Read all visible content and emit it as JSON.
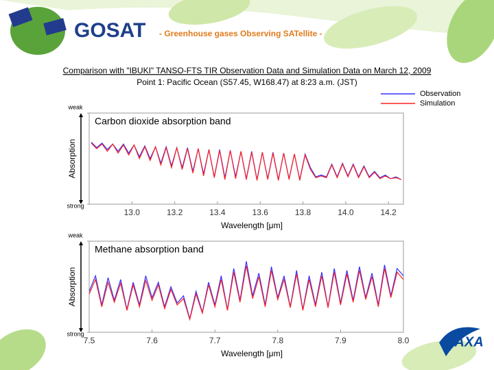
{
  "header": {
    "logo": "GOSAT",
    "tagline": "- Greenhouse gases Observing SATellite -"
  },
  "title": "Comparison with \"IBUKI\" TANSO-FTS TIR Observation Data and Simulation Data on March 12, 2009",
  "subtitle": "Point 1: Pacific Ocean (S57.45, W168.47) at 8:23 a.m. (JST)",
  "brand": "JAXA",
  "chart_data": [
    {
      "type": "line",
      "title": "Carbon dioxide absorption band",
      "x_label": "Wavelength [μm]",
      "y_label": "Absorption",
      "xlim": [
        12.8,
        14.27
      ],
      "xticks": [
        {
          "value": 13,
          "label": "13.0"
        },
        13.2,
        13.4,
        13.6,
        13.8,
        {
          "value": 14,
          "label": "14.0"
        },
        14.2
      ],
      "ylim": [
        0,
        1
      ],
      "yticks": [
        {
          "value": 1,
          "label": "weak"
        },
        {
          "value": 0,
          "label": "strong"
        }
      ],
      "x": [
        12.81,
        12.835,
        12.86,
        12.885,
        12.91,
        12.935,
        12.96,
        12.985,
        13.01,
        13.035,
        13.06,
        13.085,
        13.11,
        13.135,
        13.16,
        13.185,
        13.21,
        13.235,
        13.26,
        13.285,
        13.31,
        13.335,
        13.36,
        13.385,
        13.41,
        13.435,
        13.46,
        13.485,
        13.51,
        13.535,
        13.56,
        13.585,
        13.61,
        13.635,
        13.66,
        13.685,
        13.71,
        13.735,
        13.76,
        13.785,
        13.81,
        13.835,
        13.86,
        13.885,
        13.91,
        13.935,
        13.96,
        13.985,
        14.01,
        14.035,
        14.06,
        14.085,
        14.11,
        14.135,
        14.16,
        14.185,
        14.21,
        14.235,
        14.26
      ],
      "series": [
        {
          "name": "Observation",
          "color": "#3030ff",
          "values": [
            0.68,
            0.62,
            0.67,
            0.6,
            0.66,
            0.58,
            0.66,
            0.56,
            0.65,
            0.52,
            0.64,
            0.5,
            0.63,
            0.45,
            0.63,
            0.42,
            0.62,
            0.4,
            0.62,
            0.36,
            0.61,
            0.33,
            0.6,
            0.3,
            0.6,
            0.29,
            0.59,
            0.3,
            0.58,
            0.28,
            0.58,
            0.27,
            0.57,
            0.28,
            0.57,
            0.27,
            0.56,
            0.28,
            0.55,
            0.27,
            0.55,
            0.4,
            0.3,
            0.32,
            0.3,
            0.44,
            0.3,
            0.45,
            0.31,
            0.44,
            0.3,
            0.42,
            0.3,
            0.36,
            0.29,
            0.32,
            0.28,
            0.3,
            0.27
          ]
        },
        {
          "name": "Simulation",
          "color": "#ff2020",
          "values": [
            0.67,
            0.61,
            0.66,
            0.58,
            0.66,
            0.56,
            0.65,
            0.54,
            0.65,
            0.5,
            0.63,
            0.48,
            0.63,
            0.43,
            0.62,
            0.4,
            0.62,
            0.38,
            0.61,
            0.34,
            0.61,
            0.31,
            0.6,
            0.29,
            0.59,
            0.27,
            0.59,
            0.28,
            0.58,
            0.27,
            0.57,
            0.26,
            0.57,
            0.27,
            0.56,
            0.26,
            0.56,
            0.27,
            0.55,
            0.26,
            0.54,
            0.38,
            0.29,
            0.31,
            0.29,
            0.43,
            0.29,
            0.44,
            0.3,
            0.43,
            0.29,
            0.41,
            0.29,
            0.35,
            0.28,
            0.31,
            0.28,
            0.29,
            0.27
          ]
        }
      ]
    },
    {
      "type": "line",
      "title": "Methane absorption band",
      "x_label": "Wavelength [μm]",
      "y_label": "Absorption",
      "xlim": [
        7.5,
        8.0
      ],
      "xticks": [
        7.5,
        7.6,
        7.7,
        7.8,
        7.9,
        {
          "value": 8,
          "label": "8.0"
        }
      ],
      "ylim": [
        0,
        1
      ],
      "yticks": [
        {
          "value": 1,
          "label": "weak"
        },
        {
          "value": 0,
          "label": "strong"
        }
      ],
      "x": [
        7.5,
        7.51,
        7.52,
        7.53,
        7.54,
        7.55,
        7.56,
        7.57,
        7.58,
        7.59,
        7.6,
        7.61,
        7.62,
        7.63,
        7.64,
        7.65,
        7.66,
        7.67,
        7.68,
        7.69,
        7.7,
        7.71,
        7.72,
        7.73,
        7.74,
        7.75,
        7.76,
        7.77,
        7.78,
        7.79,
        7.8,
        7.81,
        7.82,
        7.83,
        7.84,
        7.85,
        7.86,
        7.87,
        7.88,
        7.89,
        7.9,
        7.91,
        7.92,
        7.93,
        7.94,
        7.95,
        7.96,
        7.97,
        7.98,
        7.99,
        8.0
      ],
      "series": [
        {
          "color": "#3030ff",
          "values": [
            0.45,
            0.62,
            0.3,
            0.6,
            0.35,
            0.58,
            0.25,
            0.55,
            0.3,
            0.62,
            0.38,
            0.55,
            0.28,
            0.5,
            0.32,
            0.4,
            0.15,
            0.45,
            0.22,
            0.55,
            0.3,
            0.62,
            0.25,
            0.7,
            0.35,
            0.78,
            0.4,
            0.65,
            0.3,
            0.72,
            0.38,
            0.62,
            0.28,
            0.68,
            0.25,
            0.62,
            0.3,
            0.66,
            0.28,
            0.7,
            0.32,
            0.68,
            0.35,
            0.72,
            0.38,
            0.65,
            0.3,
            0.74,
            0.4,
            0.7,
            0.62
          ]
        },
        {
          "color": "#ff2020",
          "values": [
            0.42,
            0.58,
            0.28,
            0.55,
            0.33,
            0.54,
            0.24,
            0.52,
            0.28,
            0.57,
            0.35,
            0.52,
            0.26,
            0.47,
            0.3,
            0.37,
            0.14,
            0.42,
            0.21,
            0.52,
            0.28,
            0.58,
            0.24,
            0.66,
            0.33,
            0.73,
            0.37,
            0.61,
            0.28,
            0.68,
            0.36,
            0.58,
            0.27,
            0.64,
            0.24,
            0.58,
            0.28,
            0.62,
            0.27,
            0.66,
            0.3,
            0.64,
            0.33,
            0.68,
            0.36,
            0.61,
            0.28,
            0.7,
            0.38,
            0.66,
            0.58
          ]
        }
      ]
    }
  ]
}
